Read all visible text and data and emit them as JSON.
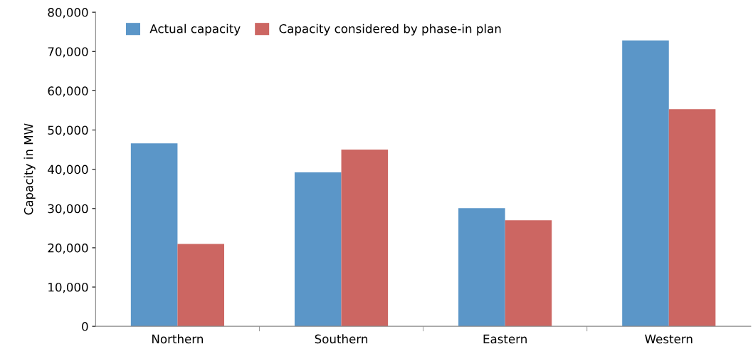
{
  "chart_data": {
    "type": "bar",
    "ylabel": "Capacity in MW",
    "categories": [
      "Northern",
      "Southern",
      "Eastern",
      "Western"
    ],
    "series": [
      {
        "name": "Actual capacity",
        "color": "#5b96c8",
        "values": [
          46600,
          39200,
          30100,
          72800
        ]
      },
      {
        "name": "Capacity considered by phase-in plan",
        "color": "#cc6662",
        "values": [
          21000,
          45000,
          27000,
          55300
        ]
      }
    ],
    "ylim": [
      0,
      80000
    ],
    "yticks": [
      {
        "value": 0,
        "label": "0"
      },
      {
        "value": 10000,
        "label": "10,000"
      },
      {
        "value": 20000,
        "label": "20,000"
      },
      {
        "value": 30000,
        "label": "30,000"
      },
      {
        "value": 40000,
        "label": "40,000"
      },
      {
        "value": 50000,
        "label": "50,000"
      },
      {
        "value": 60000,
        "label": "60,000"
      },
      {
        "value": 70000,
        "label": "70,000"
      },
      {
        "value": 80000,
        "label": "80,000"
      }
    ],
    "grid": false,
    "legend": "top left"
  }
}
